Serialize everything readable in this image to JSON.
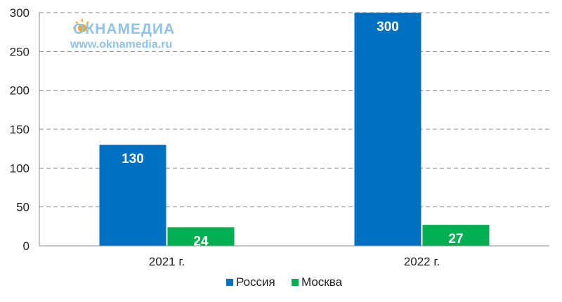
{
  "watermark": {
    "brand": "ОКНАМЕДИА",
    "url": "www.oknamedia.ru",
    "color": "#8fc3ec"
  },
  "chart_data": {
    "type": "bar",
    "categories": [
      "2021 г.",
      "2022 г."
    ],
    "series": [
      {
        "name": "Россия",
        "values": [
          130,
          300
        ],
        "color": "#0070c0"
      },
      {
        "name": "Москва",
        "values": [
          24,
          27
        ],
        "color": "#00b050"
      }
    ],
    "ylim": [
      0,
      300
    ],
    "yticks": [
      0,
      50,
      100,
      150,
      200,
      250,
      300
    ],
    "grid": true,
    "legend": "bottom-center",
    "data_labels": true
  }
}
